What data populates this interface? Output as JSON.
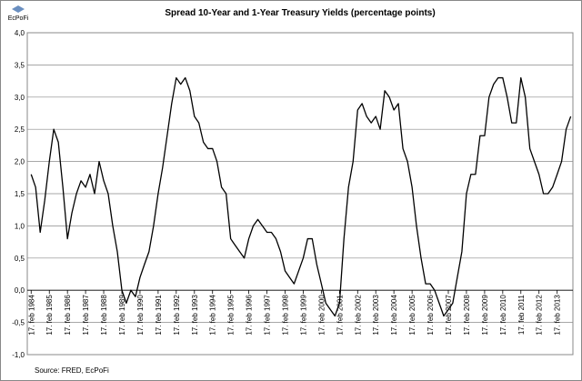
{
  "chart_data": {
    "type": "line",
    "title": "Spread 10-Year and 1-Year Treasury Yields (percentage points)",
    "source": "Source: FRED, EcPoFi",
    "logo": "EcPoFi",
    "xlim": [
      "1983-12-01",
      "2013-12-31"
    ],
    "xticks": [
      {
        "value": "1984-02-17",
        "label": "17. feb 1984"
      },
      {
        "value": "1985-02-17",
        "label": "17. feb 1985"
      },
      {
        "value": "1986-02-17",
        "label": "17. feb 1986"
      },
      {
        "value": "1987-02-17",
        "label": "17. feb 1987"
      },
      {
        "value": "1988-02-17",
        "label": "17. feb 1988"
      },
      {
        "value": "1989-02-17",
        "label": "17. feb 1989"
      },
      {
        "value": "1990-02-17",
        "label": "17. feb 1990"
      },
      {
        "value": "1991-02-17",
        "label": "17. feb 1991"
      },
      {
        "value": "1992-02-17",
        "label": "17. feb 1992"
      },
      {
        "value": "1993-02-17",
        "label": "17. feb 1993"
      },
      {
        "value": "1994-02-17",
        "label": "17. feb 1994"
      },
      {
        "value": "1995-02-17",
        "label": "17. feb 1995"
      },
      {
        "value": "1996-02-17",
        "label": "17. feb 1996"
      },
      {
        "value": "1997-02-17",
        "label": "17. feb 1997"
      },
      {
        "value": "1998-02-17",
        "label": "17. feb 1998"
      },
      {
        "value": "1999-02-17",
        "label": "17. feb 1999"
      },
      {
        "value": "2000-02-17",
        "label": "17. feb 2000"
      },
      {
        "value": "2001-02-17",
        "label": "17. feb 2001"
      },
      {
        "value": "2002-02-17",
        "label": "17. feb 2002"
      },
      {
        "value": "2003-02-17",
        "label": "17. feb 2003"
      },
      {
        "value": "2004-02-17",
        "label": "17. feb 2004"
      },
      {
        "value": "2005-02-17",
        "label": "17. feb 2005"
      },
      {
        "value": "2006-02-17",
        "label": "17. feb 2006"
      },
      {
        "value": "2007-02-17",
        "label": "17. feb 2007"
      },
      {
        "value": "2008-02-17",
        "label": "17. feb 2008"
      },
      {
        "value": "2009-02-17",
        "label": "17. feb 2009"
      },
      {
        "value": "2010-02-17",
        "label": "17. feb 2010"
      },
      {
        "value": "2011-02-17",
        "label": "17. feb 2011"
      },
      {
        "value": "2012-02-17",
        "label": "17. feb 2012"
      },
      {
        "value": "2013-02-17",
        "label": "17. feb 2013"
      }
    ],
    "ylim": [
      -1,
      4
    ],
    "yticks": [
      {
        "value": -1,
        "label": "-1,0"
      },
      {
        "value": -0.5,
        "label": "-0,5"
      },
      {
        "value": 0,
        "label": "0,0"
      },
      {
        "value": 0.5,
        "label": "0,5"
      },
      {
        "value": 1,
        "label": "1,0"
      },
      {
        "value": 1.5,
        "label": "1,5"
      },
      {
        "value": 2,
        "label": "2,0"
      },
      {
        "value": 2.5,
        "label": "2,5"
      },
      {
        "value": 3,
        "label": "3,0"
      },
      {
        "value": 3.5,
        "label": "3,5"
      },
      {
        "value": 4,
        "label": "4,0"
      }
    ],
    "grid": true,
    "x": [
      "1984-02-17",
      "1984-05-17",
      "1984-08-17",
      "1984-11-17",
      "1985-02-17",
      "1985-05-17",
      "1985-08-17",
      "1985-11-17",
      "1986-02-17",
      "1986-05-17",
      "1986-08-17",
      "1986-11-17",
      "1987-02-17",
      "1987-05-17",
      "1987-08-17",
      "1987-11-17",
      "1988-02-17",
      "1988-05-17",
      "1988-08-17",
      "1988-11-17",
      "1989-02-17",
      "1989-05-17",
      "1989-08-17",
      "1989-11-17",
      "1990-02-17",
      "1990-05-17",
      "1990-08-17",
      "1990-11-17",
      "1991-02-17",
      "1991-05-17",
      "1991-08-17",
      "1991-11-17",
      "1992-02-17",
      "1992-05-17",
      "1992-08-17",
      "1992-11-17",
      "1993-02-17",
      "1993-05-17",
      "1993-08-17",
      "1993-11-17",
      "1994-02-17",
      "1994-05-17",
      "1994-08-17",
      "1994-11-17",
      "1995-02-17",
      "1995-05-17",
      "1995-08-17",
      "1995-11-17",
      "1996-02-17",
      "1996-05-17",
      "1996-08-17",
      "1996-11-17",
      "1997-02-17",
      "1997-05-17",
      "1997-08-17",
      "1997-11-17",
      "1998-02-17",
      "1998-05-17",
      "1998-08-17",
      "1998-11-17",
      "1999-02-17",
      "1999-05-17",
      "1999-08-17",
      "1999-11-17",
      "2000-02-17",
      "2000-05-17",
      "2000-08-17",
      "2000-11-17",
      "2001-02-17",
      "2001-05-17",
      "2001-08-17",
      "2001-11-17",
      "2002-02-17",
      "2002-05-17",
      "2002-08-17",
      "2002-11-17",
      "2003-02-17",
      "2003-05-17",
      "2003-08-17",
      "2003-11-17",
      "2004-02-17",
      "2004-05-17",
      "2004-08-17",
      "2004-11-17",
      "2005-02-17",
      "2005-05-17",
      "2005-08-17",
      "2005-11-17",
      "2006-02-17",
      "2006-05-17",
      "2006-08-17",
      "2006-11-17",
      "2007-02-17",
      "2007-05-17",
      "2007-08-17",
      "2007-11-17",
      "2008-02-17",
      "2008-05-17",
      "2008-08-17",
      "2008-11-17",
      "2009-02-17",
      "2009-05-17",
      "2009-08-17",
      "2009-11-17",
      "2010-02-17",
      "2010-05-17",
      "2010-08-17",
      "2010-11-17",
      "2011-02-17",
      "2011-05-17",
      "2011-08-17",
      "2011-11-17",
      "2012-02-17",
      "2012-05-17",
      "2012-08-17",
      "2012-11-17",
      "2013-02-17",
      "2013-05-17",
      "2013-08-17",
      "2013-11-17"
    ],
    "series": [
      {
        "color": "#000000",
        "values": [
          1.8,
          1.6,
          0.9,
          1.4,
          2.0,
          2.5,
          2.3,
          1.6,
          0.8,
          1.2,
          1.5,
          1.7,
          1.6,
          1.8,
          1.5,
          2.0,
          1.7,
          1.5,
          1.0,
          0.6,
          0.0,
          -0.2,
          0.0,
          -0.1,
          0.2,
          0.4,
          0.6,
          1.0,
          1.5,
          1.9,
          2.4,
          2.9,
          3.3,
          3.2,
          3.3,
          3.1,
          2.7,
          2.6,
          2.3,
          2.2,
          2.2,
          2.0,
          1.6,
          1.5,
          0.8,
          0.7,
          0.6,
          0.5,
          0.8,
          1.0,
          1.1,
          1.0,
          0.9,
          0.9,
          0.8,
          0.6,
          0.3,
          0.2,
          0.1,
          0.3,
          0.5,
          0.8,
          0.8,
          0.4,
          0.1,
          -0.2,
          -0.3,
          -0.4,
          -0.2,
          0.8,
          1.6,
          2.0,
          2.8,
          2.9,
          2.7,
          2.6,
          2.7,
          2.5,
          3.1,
          3.0,
          2.8,
          2.9,
          2.2,
          2.0,
          1.6,
          1.0,
          0.5,
          0.1,
          0.1,
          0.0,
          -0.2,
          -0.4,
          -0.3,
          -0.2,
          0.2,
          0.6,
          1.5,
          1.8,
          1.8,
          2.4,
          2.4,
          3.0,
          3.2,
          3.3,
          3.3,
          3.0,
          2.6,
          2.6,
          3.3,
          3.0,
          2.2,
          2.0,
          1.8,
          1.5,
          1.5,
          1.6,
          1.8,
          2.0,
          2.5,
          2.7
        ]
      }
    ]
  }
}
